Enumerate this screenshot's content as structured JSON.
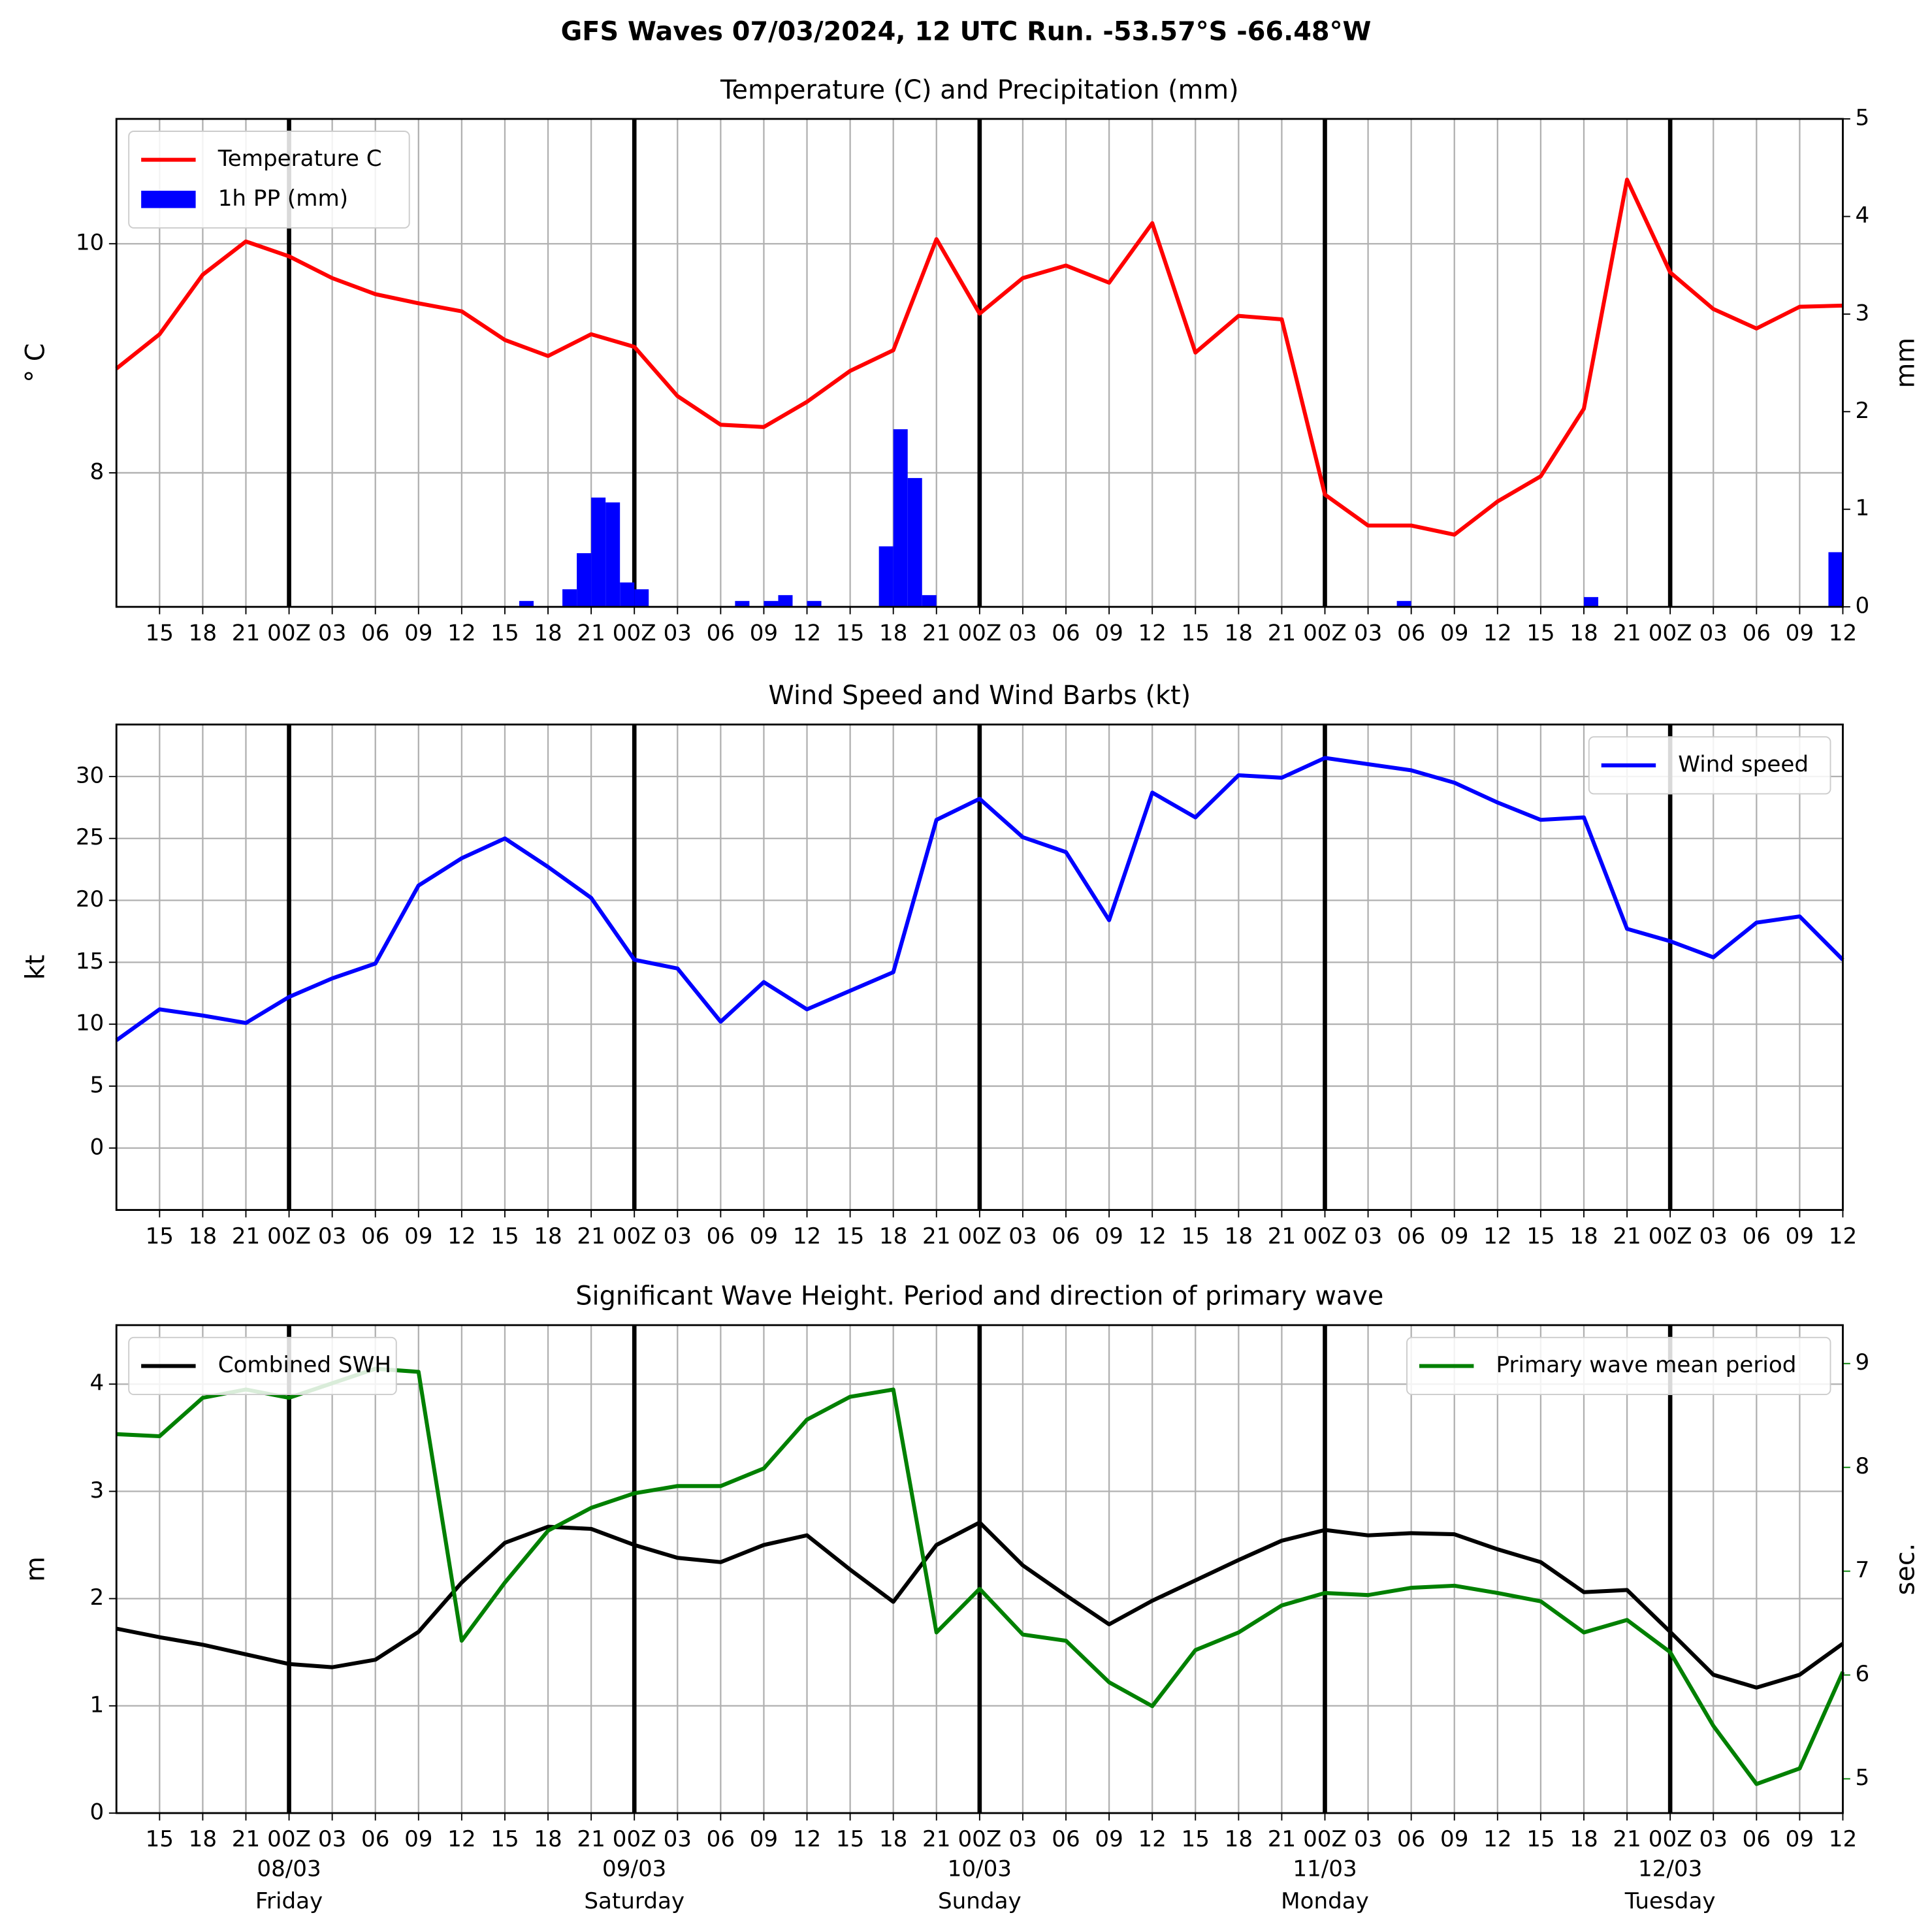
{
  "title": "GFS Waves 07/03/2024, 12 UTC Run. -53.57°S -66.48°W",
  "chart_data": [
    {
      "type": "line",
      "title": "Temperature (C) and Precipitation (mm)",
      "ylabel": "° C",
      "y2label": "mm",
      "legend": "upper left",
      "grid": true,
      "x": [
        0,
        3,
        6,
        9,
        12,
        15,
        18,
        21,
        24,
        27,
        30,
        33,
        36,
        39,
        42,
        45,
        48,
        51,
        54,
        57,
        60,
        63,
        66,
        69,
        72,
        75,
        78,
        81,
        84,
        87,
        90,
        93,
        96,
        99,
        102,
        105,
        108,
        111,
        114,
        117,
        120
      ],
      "xlim": [
        0,
        120
      ],
      "xticks": [
        {
          "value": 3,
          "label": "15"
        },
        {
          "value": 6,
          "label": "18"
        },
        {
          "value": 9,
          "label": "21"
        },
        {
          "value": 12,
          "label": "00Z"
        },
        {
          "value": 15,
          "label": "03"
        },
        {
          "value": 18,
          "label": "06"
        },
        {
          "value": 21,
          "label": "09"
        },
        {
          "value": 24,
          "label": "12"
        },
        {
          "value": 27,
          "label": "15"
        },
        {
          "value": 30,
          "label": "18"
        },
        {
          "value": 33,
          "label": "21"
        },
        {
          "value": 36,
          "label": "00Z"
        },
        {
          "value": 39,
          "label": "03"
        },
        {
          "value": 42,
          "label": "06"
        },
        {
          "value": 45,
          "label": "09"
        },
        {
          "value": 48,
          "label": "12"
        },
        {
          "value": 51,
          "label": "15"
        },
        {
          "value": 54,
          "label": "18"
        },
        {
          "value": 57,
          "label": "21"
        },
        {
          "value": 60,
          "label": "00Z"
        },
        {
          "value": 63,
          "label": "03"
        },
        {
          "value": 66,
          "label": "06"
        },
        {
          "value": 69,
          "label": "09"
        },
        {
          "value": 72,
          "label": "12"
        },
        {
          "value": 75,
          "label": "15"
        },
        {
          "value": 78,
          "label": "18"
        },
        {
          "value": 81,
          "label": "21"
        },
        {
          "value": 84,
          "label": "00Z"
        },
        {
          "value": 87,
          "label": "03"
        },
        {
          "value": 90,
          "label": "06"
        },
        {
          "value": 93,
          "label": "09"
        },
        {
          "value": 96,
          "label": "12"
        },
        {
          "value": 99,
          "label": "15"
        },
        {
          "value": 102,
          "label": "18"
        },
        {
          "value": 105,
          "label": "21"
        },
        {
          "value": 108,
          "label": "00Z"
        },
        {
          "value": 111,
          "label": "03"
        },
        {
          "value": 114,
          "label": "06"
        },
        {
          "value": 117,
          "label": "09"
        },
        {
          "value": 120,
          "label": "12"
        }
      ],
      "vlines": [
        12,
        36,
        60,
        84,
        108
      ],
      "ylim": [
        6.83,
        11.09
      ],
      "yticks": [
        8,
        10
      ],
      "y2lim": [
        0,
        5
      ],
      "y2ticks": [
        0,
        1,
        2,
        3,
        4,
        5
      ],
      "series": [
        {
          "name": "Temperature C",
          "color": "#ff0000",
          "values": [
            8.91,
            9.21,
            9.73,
            10.02,
            9.89,
            9.7,
            9.56,
            9.48,
            9.41,
            9.16,
            9.02,
            9.21,
            9.1,
            8.67,
            8.42,
            8.4,
            8.62,
            8.89,
            9.07,
            10.04,
            9.39,
            9.7,
            9.81,
            9.66,
            10.18,
            9.05,
            9.37,
            9.34,
            7.81,
            7.54,
            7.54,
            7.46,
            7.75,
            7.97,
            8.56,
            10.56,
            9.75,
            9.43,
            9.26,
            9.45,
            9.46
          ]
        },
        {
          "name": "1h PP (mm)",
          "type": "bar",
          "axis": "y2",
          "color": "#0000ff",
          "x": [
            28.5,
            31.5,
            32.5,
            33.5,
            34.5,
            35.5,
            36.5,
            43.5,
            45.5,
            46.5,
            48.5,
            53.5,
            54.5,
            55.5,
            56.5,
            89.5,
            102.5,
            119.5
          ],
          "values": [
            0.06,
            0.18,
            0.55,
            1.12,
            1.07,
            0.25,
            0.18,
            0.06,
            0.06,
            0.12,
            0.06,
            0.62,
            1.82,
            1.32,
            0.12,
            0.06,
            0.1,
            0.56
          ]
        }
      ]
    },
    {
      "type": "line",
      "title": "Wind Speed and Wind Barbs (kt)",
      "ylabel": "kt",
      "legend": "upper right",
      "grid": true,
      "x": [
        0,
        3,
        6,
        9,
        12,
        15,
        18,
        21,
        24,
        27,
        30,
        33,
        36,
        39,
        42,
        45,
        48,
        51,
        54,
        57,
        60,
        63,
        66,
        69,
        72,
        75,
        78,
        81,
        84,
        87,
        90,
        93,
        96,
        99,
        102,
        105,
        108,
        111,
        114,
        117,
        120
      ],
      "xlim": [
        0,
        120
      ],
      "xticks": [
        {
          "value": 3,
          "label": "15"
        },
        {
          "value": 6,
          "label": "18"
        },
        {
          "value": 9,
          "label": "21"
        },
        {
          "value": 12,
          "label": "00Z"
        },
        {
          "value": 15,
          "label": "03"
        },
        {
          "value": 18,
          "label": "06"
        },
        {
          "value": 21,
          "label": "09"
        },
        {
          "value": 24,
          "label": "12"
        },
        {
          "value": 27,
          "label": "15"
        },
        {
          "value": 30,
          "label": "18"
        },
        {
          "value": 33,
          "label": "21"
        },
        {
          "value": 36,
          "label": "00Z"
        },
        {
          "value": 39,
          "label": "03"
        },
        {
          "value": 42,
          "label": "06"
        },
        {
          "value": 45,
          "label": "09"
        },
        {
          "value": 48,
          "label": "12"
        },
        {
          "value": 51,
          "label": "15"
        },
        {
          "value": 54,
          "label": "18"
        },
        {
          "value": 57,
          "label": "21"
        },
        {
          "value": 60,
          "label": "00Z"
        },
        {
          "value": 63,
          "label": "03"
        },
        {
          "value": 66,
          "label": "06"
        },
        {
          "value": 69,
          "label": "09"
        },
        {
          "value": 72,
          "label": "12"
        },
        {
          "value": 75,
          "label": "15"
        },
        {
          "value": 78,
          "label": "18"
        },
        {
          "value": 81,
          "label": "21"
        },
        {
          "value": 84,
          "label": "00Z"
        },
        {
          "value": 87,
          "label": "03"
        },
        {
          "value": 90,
          "label": "06"
        },
        {
          "value": 93,
          "label": "09"
        },
        {
          "value": 96,
          "label": "12"
        },
        {
          "value": 99,
          "label": "15"
        },
        {
          "value": 102,
          "label": "18"
        },
        {
          "value": 105,
          "label": "21"
        },
        {
          "value": 108,
          "label": "00Z"
        },
        {
          "value": 111,
          "label": "03"
        },
        {
          "value": 114,
          "label": "06"
        },
        {
          "value": 117,
          "label": "09"
        },
        {
          "value": 120,
          "label": "12"
        }
      ],
      "vlines": [
        12,
        36,
        60,
        84,
        108
      ],
      "ylim": [
        -5,
        34.2
      ],
      "yticks": [
        0,
        5,
        10,
        15,
        20,
        25,
        30
      ],
      "series": [
        {
          "name": "Wind speed",
          "color": "#0000ff",
          "values": [
            8.7,
            11.2,
            10.7,
            10.1,
            12.2,
            13.7,
            14.9,
            21.2,
            23.4,
            25,
            22.7,
            20.2,
            15.2,
            14.5,
            10.2,
            13.4,
            11.2,
            12.7,
            14.2,
            26.5,
            28.2,
            25.1,
            23.9,
            18.4,
            28.7,
            26.7,
            30.1,
            29.9,
            31.5,
            31,
            30.5,
            29.5,
            27.9,
            26.5,
            26.7,
            17.7,
            16.7,
            15.4,
            18.2,
            18.7,
            15.2
          ]
        }
      ]
    },
    {
      "type": "line",
      "title": "Significant Wave Height. Period and direction of primary wave",
      "ylabel": "m",
      "y2label": "sec.",
      "y2color": "#008000",
      "legend": "upper left",
      "y2legend": "upper right",
      "grid": true,
      "x": [
        0,
        3,
        6,
        9,
        12,
        15,
        18,
        21,
        24,
        27,
        30,
        33,
        36,
        39,
        42,
        45,
        48,
        51,
        54,
        57,
        60,
        63,
        66,
        69,
        72,
        75,
        78,
        81,
        84,
        87,
        90,
        93,
        96,
        99,
        102,
        105,
        108,
        111,
        114,
        117,
        120
      ],
      "xlim": [
        0,
        120
      ],
      "xticks": [
        {
          "value": 3,
          "label": "15"
        },
        {
          "value": 6,
          "label": "18"
        },
        {
          "value": 9,
          "label": "21"
        },
        {
          "value": 12,
          "label": "00Z"
        },
        {
          "value": 15,
          "label": "03"
        },
        {
          "value": 18,
          "label": "06"
        },
        {
          "value": 21,
          "label": "09"
        },
        {
          "value": 24,
          "label": "12"
        },
        {
          "value": 27,
          "label": "15"
        },
        {
          "value": 30,
          "label": "18"
        },
        {
          "value": 33,
          "label": "21"
        },
        {
          "value": 36,
          "label": "00Z"
        },
        {
          "value": 39,
          "label": "03"
        },
        {
          "value": 42,
          "label": "06"
        },
        {
          "value": 45,
          "label": "09"
        },
        {
          "value": 48,
          "label": "12"
        },
        {
          "value": 51,
          "label": "15"
        },
        {
          "value": 54,
          "label": "18"
        },
        {
          "value": 57,
          "label": "21"
        },
        {
          "value": 60,
          "label": "00Z"
        },
        {
          "value": 63,
          "label": "03"
        },
        {
          "value": 66,
          "label": "06"
        },
        {
          "value": 69,
          "label": "09"
        },
        {
          "value": 72,
          "label": "12"
        },
        {
          "value": 75,
          "label": "15"
        },
        {
          "value": 78,
          "label": "18"
        },
        {
          "value": 81,
          "label": "21"
        },
        {
          "value": 84,
          "label": "00Z"
        },
        {
          "value": 87,
          "label": "03"
        },
        {
          "value": 90,
          "label": "06"
        },
        {
          "value": 93,
          "label": "09"
        },
        {
          "value": 96,
          "label": "12"
        },
        {
          "value": 99,
          "label": "15"
        },
        {
          "value": 102,
          "label": "18"
        },
        {
          "value": 105,
          "label": "21"
        },
        {
          "value": 108,
          "label": "00Z"
        },
        {
          "value": 111,
          "label": "03"
        },
        {
          "value": 114,
          "label": "06"
        },
        {
          "value": 117,
          "label": "09"
        },
        {
          "value": 120,
          "label": "12"
        }
      ],
      "vlines": [
        12,
        36,
        60,
        84,
        108
      ],
      "day_labels": [
        {
          "value": 12,
          "date": "08/03",
          "day": "Friday"
        },
        {
          "value": 36,
          "date": "09/03",
          "day": "Saturday"
        },
        {
          "value": 60,
          "date": "10/03",
          "day": "Sunday"
        },
        {
          "value": 84,
          "date": "11/03",
          "day": "Monday"
        },
        {
          "value": 108,
          "date": "12/03",
          "day": "Tuesday"
        }
      ],
      "ylim": [
        0,
        4.55
      ],
      "yticks": [
        0,
        1,
        2,
        3,
        4
      ],
      "y2lim": [
        4.67,
        9.37
      ],
      "y2ticks": [
        5,
        6,
        7,
        8,
        9
      ],
      "series": [
        {
          "name": "Combined SWH",
          "color": "#000000",
          "values": [
            1.72,
            1.64,
            1.57,
            1.48,
            1.39,
            1.36,
            1.43,
            1.69,
            2.15,
            2.52,
            2.67,
            2.65,
            2.5,
            2.38,
            2.34,
            2.5,
            2.59,
            2.27,
            1.97,
            2.5,
            2.71,
            2.31,
            2.03,
            1.76,
            1.98,
            2.17,
            2.36,
            2.54,
            2.64,
            2.59,
            2.61,
            2.6,
            2.46,
            2.34,
            2.06,
            2.08,
            1.69,
            1.29,
            1.17,
            1.29,
            1.58
          ]
        },
        {
          "name": "Primary wave mean period",
          "axis": "y2",
          "color": "#008000",
          "values": [
            8.32,
            8.3,
            8.67,
            8.75,
            8.67,
            8.81,
            8.95,
            8.92,
            6.33,
            6.89,
            7.39,
            7.61,
            7.75,
            7.82,
            7.82,
            7.99,
            8.46,
            8.68,
            8.75,
            6.41,
            6.83,
            6.39,
            6.33,
            5.93,
            5.7,
            6.24,
            6.41,
            6.67,
            6.79,
            6.77,
            6.84,
            6.86,
            6.79,
            6.71,
            6.41,
            6.53,
            6.22,
            5.51,
            4.95,
            5.1,
            6.03
          ]
        }
      ]
    }
  ]
}
